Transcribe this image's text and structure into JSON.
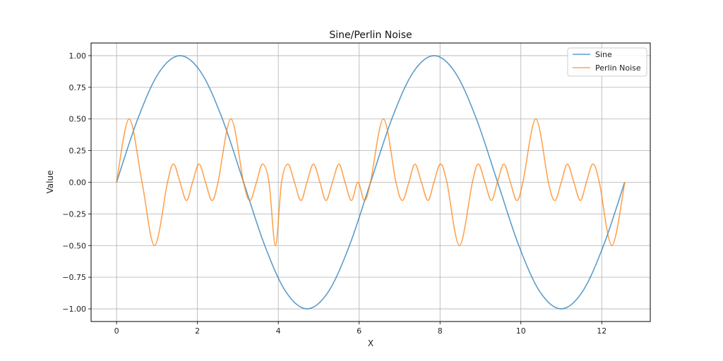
{
  "chart_data": {
    "type": "line",
    "title": "Sine/Perlin Noise",
    "xlabel": "X",
    "ylabel": "Value",
    "xlim": [
      -0.63,
      13.2
    ],
    "ylim": [
      -1.1,
      1.1
    ],
    "x_ticks": [
      0,
      2,
      4,
      6,
      8,
      10,
      12
    ],
    "y_ticks": [
      -1.0,
      -0.75,
      -0.5,
      -0.25,
      0.0,
      0.25,
      0.5,
      0.75,
      1.0
    ],
    "x_tick_labels": [
      "0",
      "2",
      "4",
      "6",
      "8",
      "10",
      "12"
    ],
    "y_tick_labels": [
      "−1.00",
      "−0.75",
      "−0.50",
      "−0.25",
      "0.00",
      "0.25",
      "0.50",
      "0.75",
      "1.00"
    ],
    "grid": true,
    "legend_position": "top-right",
    "series": [
      {
        "name": "Sine",
        "color": "#1f77b4",
        "x": [
          0,
          0.524,
          1.047,
          1.571,
          2.094,
          2.618,
          3.142,
          3.665,
          4.189,
          4.712,
          5.236,
          5.76,
          6.283,
          6.807,
          7.33,
          7.854,
          8.378,
          8.901,
          9.425,
          9.948,
          10.472,
          10.996,
          11.519,
          12.043,
          12.566
        ],
        "y": [
          0,
          0.5,
          0.866,
          1.0,
          0.866,
          0.5,
          0,
          -0.5,
          -0.866,
          -1.0,
          -0.866,
          -0.5,
          0,
          0.5,
          0.866,
          1.0,
          0.866,
          0.5,
          0,
          -0.5,
          -0.866,
          -1.0,
          -0.866,
          -0.5,
          0
        ]
      },
      {
        "name": "Perlin Noise",
        "color": "#ff7f0e",
        "x": [
          0,
          0.31,
          0.63,
          0.94,
          1.26,
          1.41,
          1.57,
          1.73,
          1.88,
          2.04,
          2.2,
          2.36,
          2.51,
          2.83,
          3.14,
          3.3,
          3.46,
          3.61,
          3.77,
          3.93,
          4.08,
          4.24,
          4.4,
          4.56,
          4.71,
          4.87,
          5.03,
          5.18,
          5.34,
          5.5,
          5.65,
          5.81,
          5.97,
          6.13,
          6.28,
          6.6,
          6.91,
          7.07,
          7.23,
          7.38,
          7.54,
          7.7,
          7.85,
          8.01,
          8.17,
          8.48,
          8.8,
          8.95,
          9.11,
          9.27,
          9.42,
          9.58,
          9.74,
          9.9,
          10.05,
          10.37,
          10.68,
          10.84,
          11.0,
          11.15,
          11.31,
          11.47,
          11.62,
          11.78,
          11.94,
          12.25,
          12.57
        ],
        "y": [
          0,
          0.5,
          0,
          -0.5,
          0,
          0.144,
          0,
          -0.144,
          0,
          0.144,
          0,
          -0.144,
          0,
          0.5,
          0,
          -0.144,
          0,
          0.144,
          0,
          -0.5,
          0,
          0.144,
          0,
          -0.144,
          0,
          0.144,
          0,
          -0.144,
          0,
          0.144,
          0,
          -0.144,
          0,
          -0.144,
          0,
          0.5,
          0,
          -0.144,
          0,
          0.144,
          0,
          -0.144,
          0,
          0.144,
          0,
          -0.5,
          0,
          0.144,
          0,
          -0.144,
          0,
          0.144,
          0,
          -0.144,
          0,
          0.5,
          0,
          -0.144,
          0,
          0.144,
          0,
          -0.144,
          0,
          0.144,
          0,
          -0.5,
          0
        ]
      }
    ]
  }
}
